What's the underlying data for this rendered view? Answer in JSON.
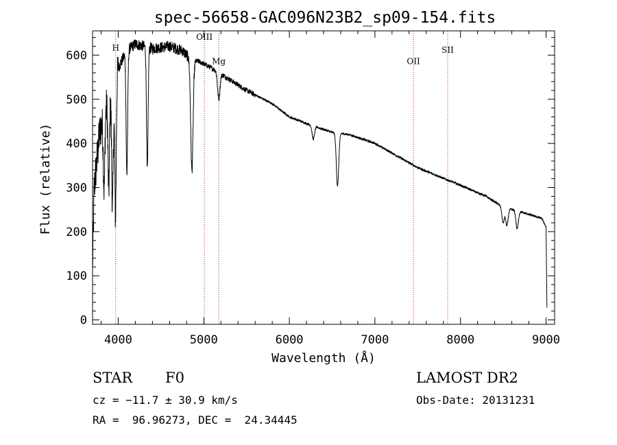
{
  "chart_data": {
    "type": "line",
    "title": "spec-56658-GAC096N23B2_sp09-154.fits",
    "xlabel": "Wavelength (Å)",
    "ylabel": "Flux (relative)",
    "xlim": [
      3700,
      9100
    ],
    "ylim": [
      -10,
      655
    ],
    "x_ticks": [
      4000,
      5000,
      6000,
      7000,
      8000,
      9000
    ],
    "y_ticks": [
      0,
      100,
      200,
      300,
      400,
      500,
      600
    ],
    "grid": false,
    "continuum": [
      {
        "x": 3700,
        "y": 120
      },
      {
        "x": 3720,
        "y": 300
      },
      {
        "x": 3780,
        "y": 420
      },
      {
        "x": 3850,
        "y": 480
      },
      {
        "x": 3950,
        "y": 520
      },
      {
        "x": 4000,
        "y": 570
      },
      {
        "x": 4100,
        "y": 610
      },
      {
        "x": 4200,
        "y": 625
      },
      {
        "x": 4400,
        "y": 615
      },
      {
        "x": 4600,
        "y": 620
      },
      {
        "x": 4750,
        "y": 610
      },
      {
        "x": 4850,
        "y": 590
      },
      {
        "x": 4950,
        "y": 585
      },
      {
        "x": 5100,
        "y": 570
      },
      {
        "x": 5300,
        "y": 545
      },
      {
        "x": 5500,
        "y": 520
      },
      {
        "x": 5800,
        "y": 490
      },
      {
        "x": 6000,
        "y": 460
      },
      {
        "x": 6200,
        "y": 445
      },
      {
        "x": 6500,
        "y": 425
      },
      {
        "x": 6700,
        "y": 420
      },
      {
        "x": 7000,
        "y": 400
      },
      {
        "x": 7500,
        "y": 345
      },
      {
        "x": 8000,
        "y": 305
      },
      {
        "x": 8300,
        "y": 280
      },
      {
        "x": 8500,
        "y": 255
      },
      {
        "x": 8700,
        "y": 245
      },
      {
        "x": 8950,
        "y": 230
      },
      {
        "x": 9000,
        "y": 210
      },
      {
        "x": 9010,
        "y": 30
      }
    ],
    "absorption_lines": [
      {
        "x": 3835,
        "depth": 170
      },
      {
        "x": 3889,
        "depth": 200
      },
      {
        "x": 3933,
        "depth": 260
      },
      {
        "x": 3968,
        "depth": 300
      },
      {
        "x": 4101,
        "depth": 280
      },
      {
        "x": 4340,
        "depth": 280
      },
      {
        "x": 4861,
        "depth": 250
      },
      {
        "x": 5175,
        "depth": 60
      },
      {
        "x": 6280,
        "depth": 30
      },
      {
        "x": 6563,
        "depth": 120
      },
      {
        "x": 8498,
        "depth": 35
      },
      {
        "x": 8542,
        "depth": 40
      },
      {
        "x": 8662,
        "depth": 40
      }
    ],
    "marker_lines": [
      {
        "x": 3970,
        "label": "H",
        "label_y": 610
      },
      {
        "x": 5007,
        "label": "OIII",
        "label_y": 635
      },
      {
        "x": 5175,
        "label": "Mg",
        "label_y": 580
      },
      {
        "x": 7450,
        "label": "OII",
        "label_y": 580
      },
      {
        "x": 7850,
        "label": "SII",
        "label_y": 605
      }
    ]
  },
  "info": {
    "class_label": "STAR",
    "subclass": "F0",
    "survey": "LAMOST DR2",
    "redshift": "cz = −11.7 ± 30.9 km/s",
    "obs_date": "Obs-Date: 20131231",
    "coords": "RA =  96.96273, DEC =  24.34445"
  }
}
